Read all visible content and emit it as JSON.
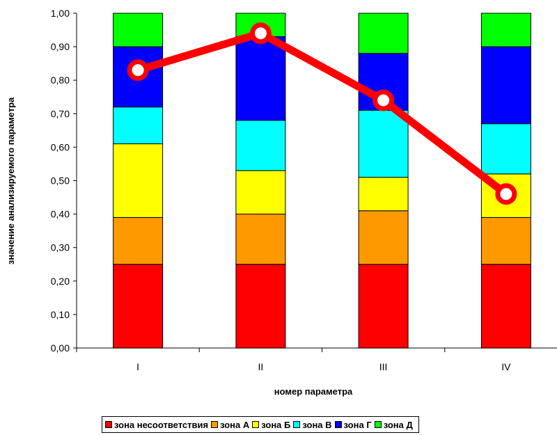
{
  "chart_data": {
    "type": "bar",
    "stacked": true,
    "categories": [
      "I",
      "II",
      "III",
      "IV"
    ],
    "xlabel": "номер параметра",
    "ylabel": "значение анализируемого параметра",
    "ylim": [
      0,
      1
    ],
    "yticks": [
      "0,00",
      "0,10",
      "0,20",
      "0,30",
      "0,40",
      "0,50",
      "0,60",
      "0,70",
      "0,80",
      "0,90",
      "1,00"
    ],
    "grid": false,
    "legend_position": "bottom",
    "series": [
      {
        "name": "зона несоответствия",
        "color": "#ff0000",
        "values": [
          0.25,
          0.25,
          0.25,
          0.25
        ]
      },
      {
        "name": "зона А",
        "color": "#ff9900",
        "values": [
          0.14,
          0.15,
          0.16,
          0.14
        ]
      },
      {
        "name": "зона Б",
        "color": "#ffff00",
        "values": [
          0.22,
          0.13,
          0.1,
          0.13
        ]
      },
      {
        "name": "зона В",
        "color": "#00ffff",
        "values": [
          0.11,
          0.15,
          0.2,
          0.15
        ]
      },
      {
        "name": "зона Г",
        "color": "#0000ff",
        "values": [
          0.18,
          0.25,
          0.17,
          0.23
        ]
      },
      {
        "name": "зона Д",
        "color": "#00ff00",
        "values": [
          0.1,
          0.07,
          0.12,
          0.1
        ]
      }
    ],
    "line": {
      "color": "#ff0000",
      "x": [
        0.5,
        1.5,
        2.5,
        3.5
      ],
      "values": [
        0.83,
        0.94,
        0.74,
        0.46
      ]
    }
  }
}
